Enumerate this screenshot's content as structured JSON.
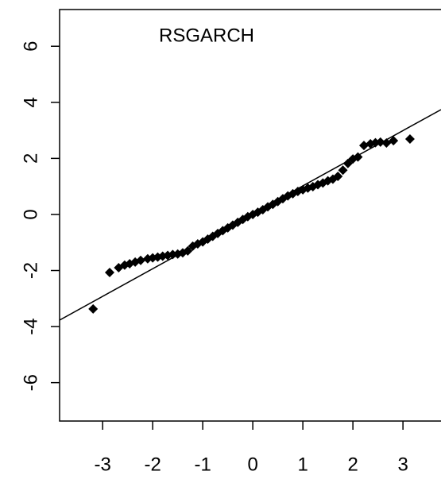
{
  "chart_data": {
    "type": "scatter",
    "title": "RSGARCH",
    "x": [
      -3.19,
      -2.86,
      -2.68,
      -2.56,
      -2.46,
      -2.35,
      -2.24,
      -2.1,
      -2.0,
      -1.9,
      -1.8,
      -1.7,
      -1.6,
      -1.5,
      -1.4,
      -1.3,
      -1.2,
      -1.1,
      -1.0,
      -0.9,
      -0.8,
      -0.7,
      -0.6,
      -0.5,
      -0.4,
      -0.3,
      -0.2,
      -0.1,
      0,
      0.1,
      0.2,
      0.3,
      0.4,
      0.5,
      0.6,
      0.7,
      0.8,
      0.9,
      1.0,
      1.1,
      1.2,
      1.3,
      1.4,
      1.5,
      1.6,
      1.7,
      1.8,
      1.9,
      2.0,
      2.1,
      2.22,
      2.35,
      2.45,
      2.55,
      2.67,
      2.81,
      3.14
    ],
    "values": [
      -3.37,
      -2.07,
      -1.9,
      -1.81,
      -1.76,
      -1.7,
      -1.64,
      -1.58,
      -1.55,
      -1.52,
      -1.49,
      -1.46,
      -1.43,
      -1.41,
      -1.37,
      -1.3,
      -1.13,
      -1.05,
      -0.98,
      -0.88,
      -0.78,
      -0.68,
      -0.58,
      -0.48,
      -0.38,
      -0.28,
      -0.18,
      -0.08,
      0.0,
      0.08,
      0.17,
      0.27,
      0.36,
      0.46,
      0.56,
      0.66,
      0.74,
      0.82,
      0.88,
      0.94,
      0.99,
      1.06,
      1.12,
      1.2,
      1.26,
      1.36,
      1.58,
      1.82,
      1.98,
      2.05,
      2.46,
      2.52,
      2.56,
      2.58,
      2.55,
      2.63,
      2.69
    ],
    "color": "#000000",
    "reference_line": {
      "x": [
        -3.86,
        3.76
      ],
      "values": [
        -3.77,
        3.74
      ]
    },
    "xlim": [
      -3.86,
      3.76
    ],
    "ylim": [
      -7.37,
      7.31
    ],
    "xticks": [
      -3,
      -2,
      -1,
      0,
      1,
      2,
      3
    ],
    "yticks": [
      -6,
      -4,
      -2,
      0,
      2,
      4,
      6
    ]
  }
}
